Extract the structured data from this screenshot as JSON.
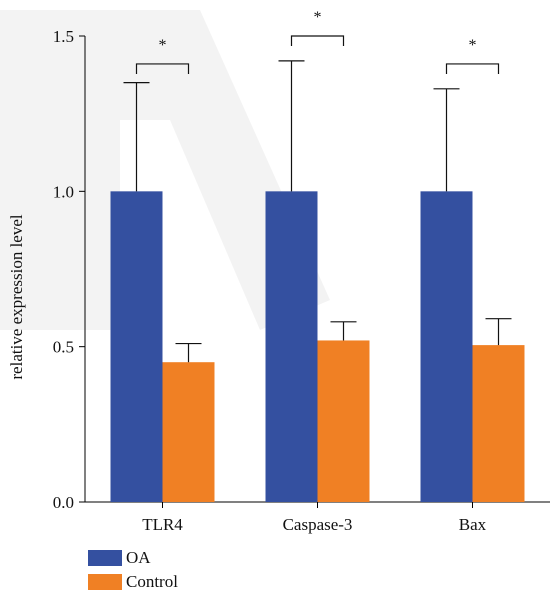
{
  "chart_data": {
    "type": "bar",
    "title": "",
    "xlabel": "",
    "ylabel": "relative expression level",
    "ylim": [
      0,
      1.5
    ],
    "yticks": [
      "0.0",
      "0.5",
      "1.0",
      "1.5"
    ],
    "ytick_values": [
      0,
      0.5,
      1.0,
      1.5
    ],
    "categories": [
      "TLR4",
      "Caspase-3",
      "Bax"
    ],
    "series": [
      {
        "name": "OA",
        "color": "#3450a0",
        "values": [
          1.0,
          1.0,
          1.0
        ],
        "errors": [
          0.35,
          0.42,
          0.33
        ]
      },
      {
        "name": "Control",
        "color": "#f08024",
        "values": [
          0.45,
          0.52,
          0.505
        ],
        "errors": [
          0.06,
          0.06,
          0.085
        ]
      }
    ],
    "significance": [
      {
        "category": "TLR4",
        "bracket_y": 1.41,
        "label": "*"
      },
      {
        "category": "Caspase-3",
        "bracket_y": 1.5,
        "label": "*"
      },
      {
        "category": "Bax",
        "bracket_y": 1.41,
        "label": "*"
      }
    ],
    "legend_position": "bottom-left",
    "grid": false
  }
}
